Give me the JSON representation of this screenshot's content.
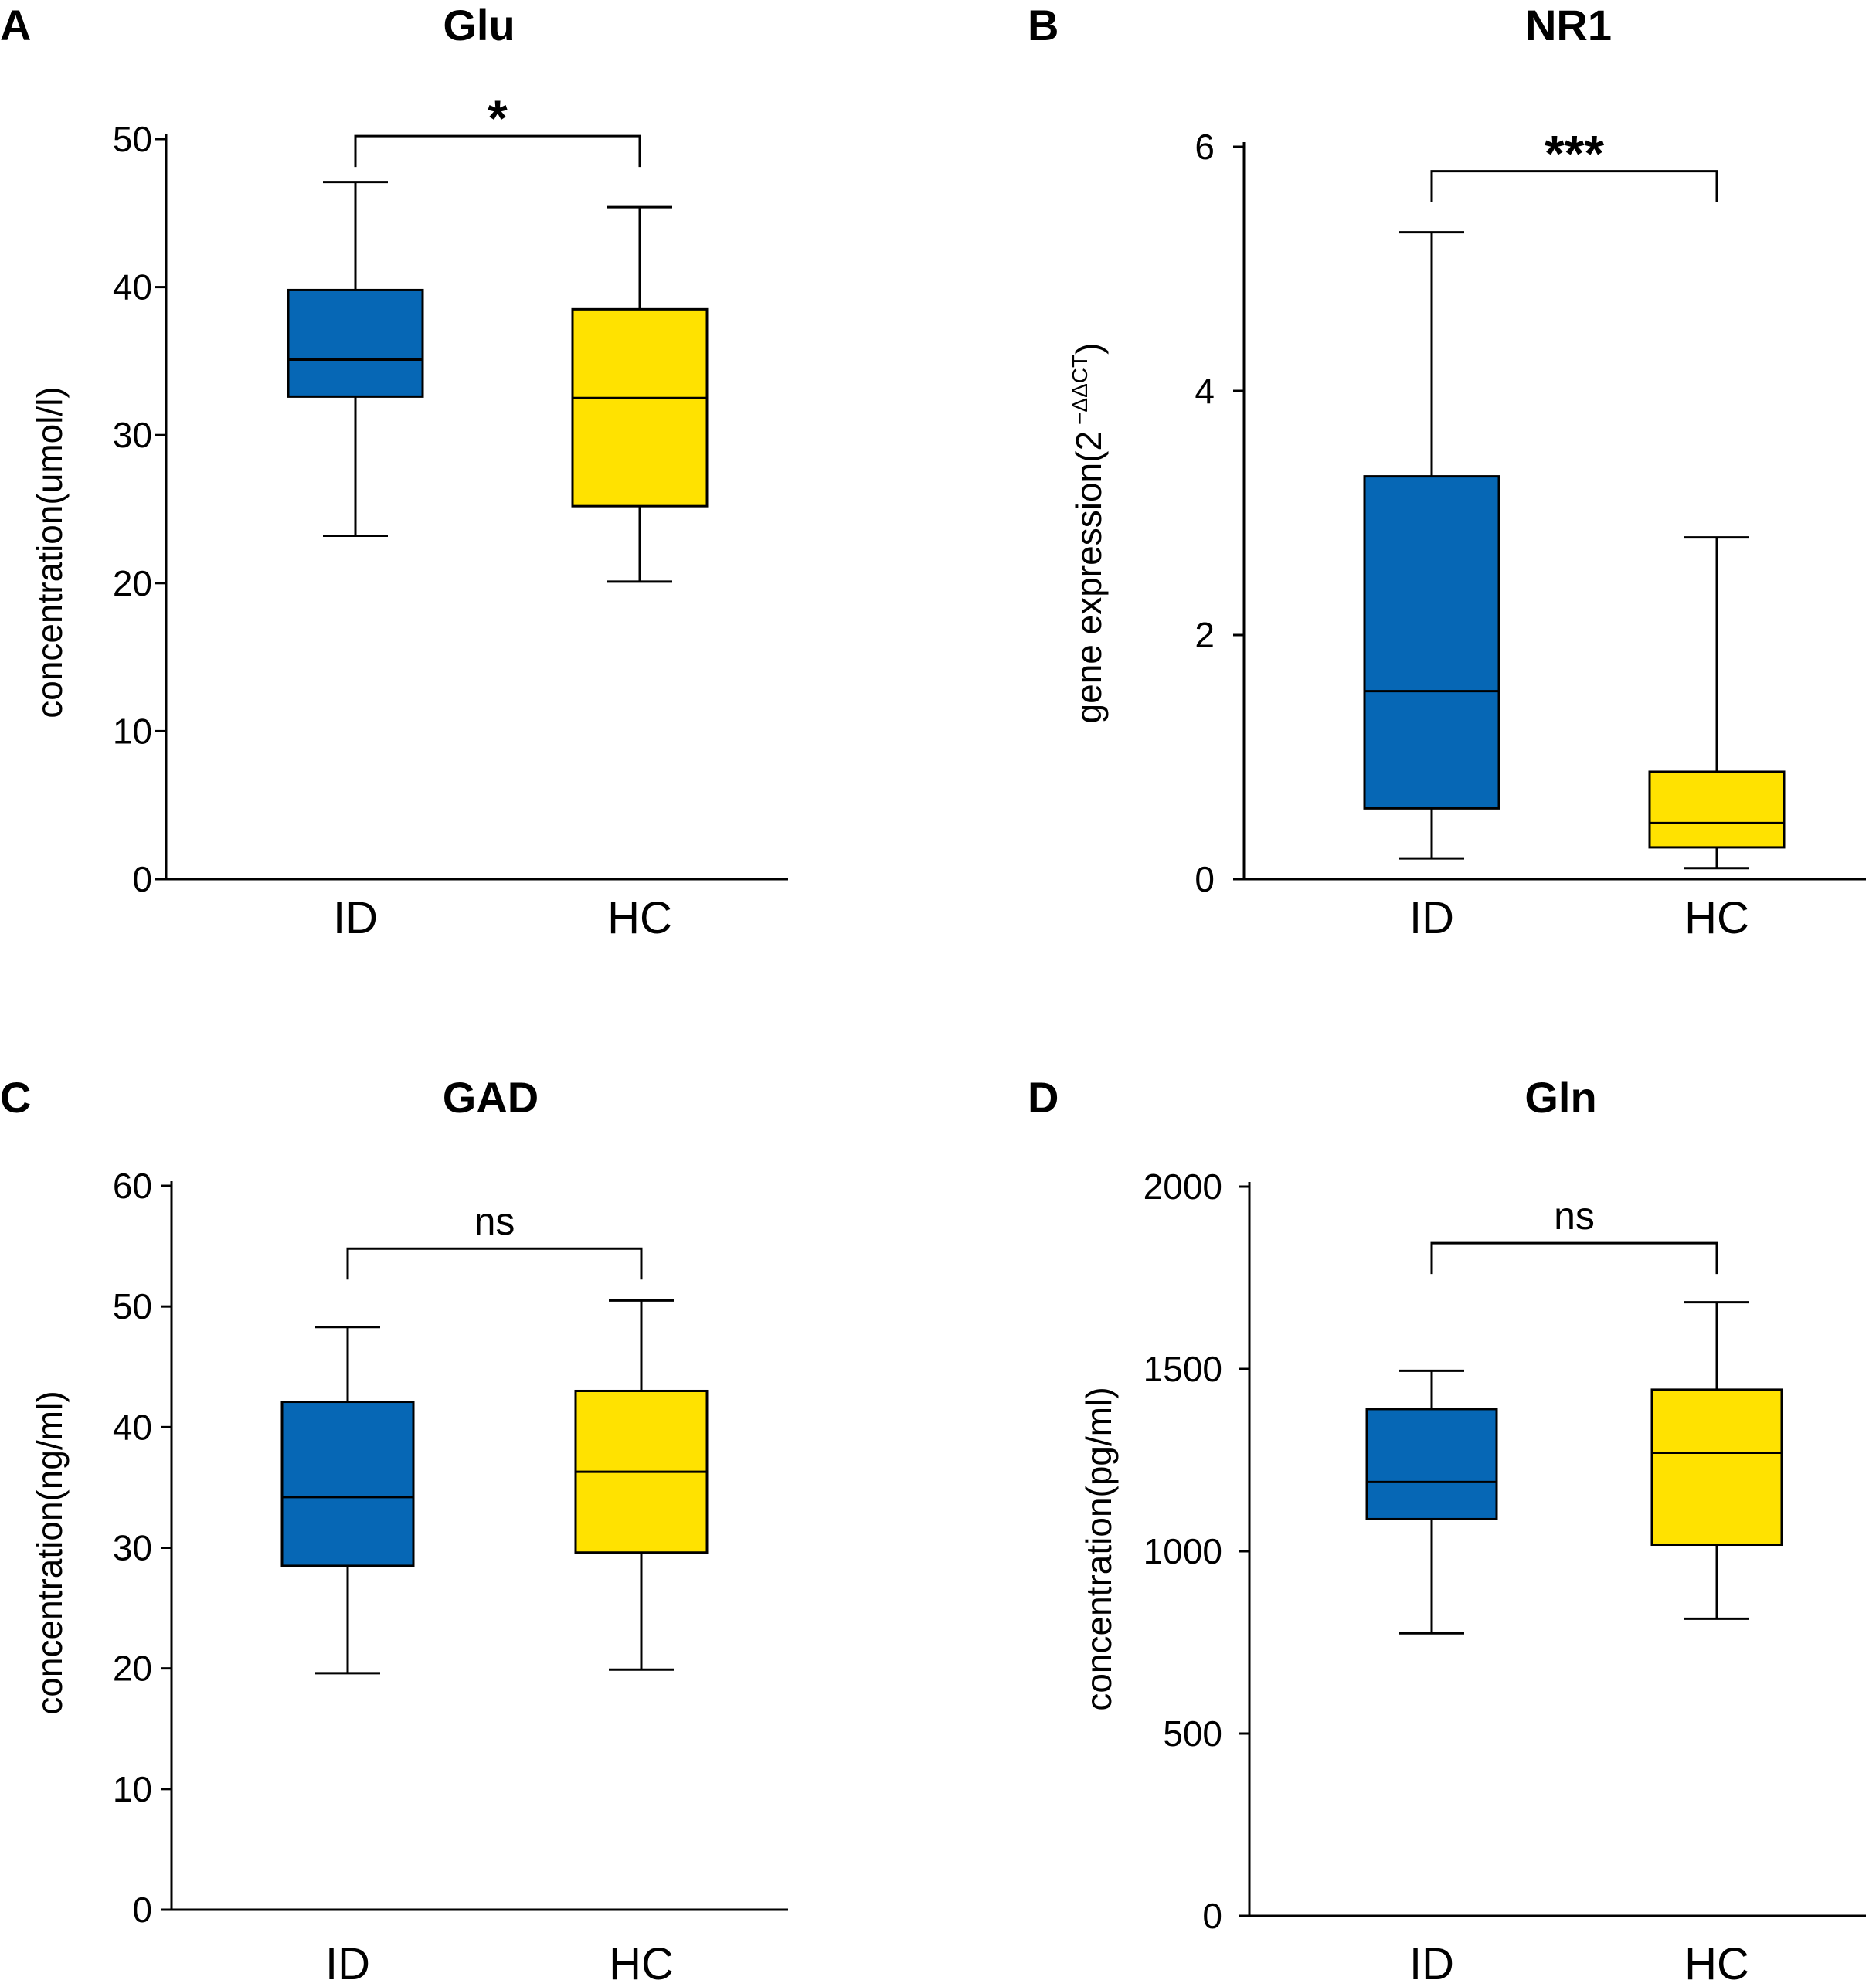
{
  "colors": {
    "ID": "#0667b5",
    "HC": "#ffe200"
  },
  "chart_data": [
    {
      "type": "box",
      "panel": "A",
      "title": "Glu",
      "ylabel": "concentration(umol/l)",
      "ylabel_sup": "",
      "ylim": [
        0,
        50
      ],
      "yticks": [
        0,
        10,
        20,
        30,
        40,
        50
      ],
      "categories": [
        "ID",
        "HC"
      ],
      "boxes": [
        {
          "group": "ID",
          "min": 23.2,
          "q1": 32.6,
          "median": 35.1,
          "q3": 39.8,
          "max": 47.1
        },
        {
          "group": "HC",
          "min": 20.1,
          "q1": 25.2,
          "median": 32.5,
          "q3": 38.5,
          "max": 45.4
        }
      ],
      "significance": "*",
      "bracket_y": 50.2
    },
    {
      "type": "box",
      "panel": "B",
      "title": "NR1",
      "ylabel": "gene expression(2",
      "ylabel_sup": "−ΔΔCT",
      "ylabel_close": ")",
      "ylim": [
        0,
        6
      ],
      "yticks": [
        0,
        2,
        4,
        6
      ],
      "categories": [
        "ID",
        "HC"
      ],
      "boxes": [
        {
          "group": "ID",
          "min": 0.17,
          "q1": 0.58,
          "median": 1.54,
          "q3": 3.3,
          "max": 5.3
        },
        {
          "group": "HC",
          "min": 0.09,
          "q1": 0.26,
          "median": 0.46,
          "q3": 0.88,
          "max": 2.8
        }
      ],
      "significance": "***",
      "bracket_y": 5.8
    },
    {
      "type": "box",
      "panel": "C",
      "title": "GAD",
      "ylabel": "concentration(ng/ml)",
      "ylabel_sup": "",
      "ylim": [
        0,
        60
      ],
      "yticks": [
        0,
        10,
        20,
        30,
        40,
        50,
        60
      ],
      "categories": [
        "ID",
        "HC"
      ],
      "boxes": [
        {
          "group": "ID",
          "min": 19.6,
          "q1": 28.5,
          "median": 34.2,
          "q3": 42.1,
          "max": 48.3
        },
        {
          "group": "HC",
          "min": 19.9,
          "q1": 29.6,
          "median": 36.3,
          "q3": 43.0,
          "max": 50.5
        }
      ],
      "significance": "ns",
      "bracket_y": 54.8
    },
    {
      "type": "box",
      "panel": "D",
      "title": "Gln",
      "ylabel": "concentration(pg/ml)",
      "ylabel_sup": "",
      "ylim": [
        0,
        2000
      ],
      "yticks": [
        0,
        500,
        1000,
        1500,
        2000
      ],
      "categories": [
        "ID",
        "HC"
      ],
      "boxes": [
        {
          "group": "ID",
          "min": 775,
          "q1": 1088,
          "median": 1190,
          "q3": 1390,
          "max": 1495
        },
        {
          "group": "HC",
          "min": 815,
          "q1": 1018,
          "median": 1270,
          "q3": 1443,
          "max": 1683
        }
      ],
      "significance": "ns",
      "bracket_y": 1845
    }
  ]
}
